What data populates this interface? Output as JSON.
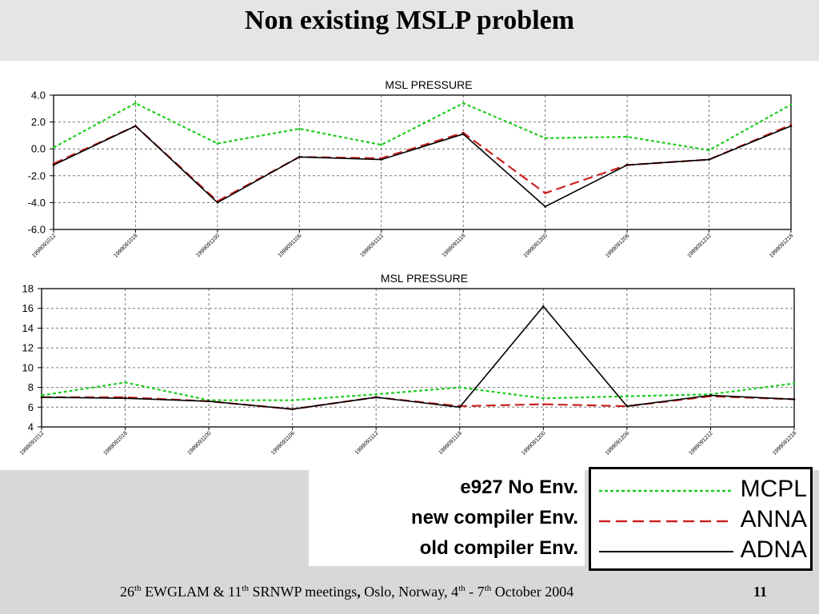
{
  "slide_title": "Non existing MSLP problem",
  "chart_data": [
    {
      "type": "line",
      "title": "MSL PRESSURE",
      "xlabel": "",
      "ylabel": "",
      "categories": [
        "1999091012",
        "1999091018",
        "1999091100",
        "1999091106",
        "1999091112",
        "1999091118",
        "1999091200",
        "1999091206",
        "1999091212",
        "1999091218"
      ],
      "ylim": [
        -6,
        4
      ],
      "yticks": [
        4,
        2,
        0,
        -2,
        -4,
        -6
      ],
      "ytick_labels": [
        "4.0",
        "2.0",
        "0.0",
        "-2.0",
        "-4.0",
        "-6.0"
      ],
      "grid": true,
      "series": [
        {
          "name": "MCPL",
          "color": "#22cc22",
          "dash": "4,3",
          "values": [
            0.1,
            3.4,
            0.4,
            1.5,
            0.3,
            3.4,
            0.8,
            0.9,
            -0.1,
            3.3
          ]
        },
        {
          "name": "ANNA",
          "color": "#cc2222",
          "dash": "12,6",
          "values": [
            -1.1,
            1.7,
            -3.9,
            -0.6,
            -0.7,
            1.2,
            -3.3,
            -1.2,
            -0.8,
            1.8
          ]
        },
        {
          "name": "ADNA",
          "color": "#000000",
          "dash": "",
          "values": [
            -1.2,
            1.7,
            -4.0,
            -0.6,
            -0.8,
            1.1,
            -4.3,
            -1.2,
            -0.8,
            1.7
          ]
        }
      ]
    },
    {
      "type": "line",
      "title": "MSL PRESSURE",
      "xlabel": "",
      "ylabel": "",
      "categories": [
        "1999091012",
        "1999091018",
        "1999091100",
        "1999091106",
        "1999091112",
        "1999091118",
        "1999091200",
        "1999091206",
        "1999091212",
        "1999091218"
      ],
      "ylim": [
        4,
        18
      ],
      "yticks": [
        18,
        16,
        14,
        12,
        10,
        8,
        6,
        4
      ],
      "ytick_labels": [
        "18",
        "16",
        "14",
        "12",
        "10",
        "8",
        "6",
        "4"
      ],
      "grid": true,
      "series": [
        {
          "name": "MCPL",
          "color": "#22cc22",
          "dash": "4,3",
          "values": [
            7.2,
            8.5,
            6.7,
            6.7,
            7.3,
            8.0,
            6.9,
            7.1,
            7.3,
            8.4
          ]
        },
        {
          "name": "ANNA",
          "color": "#cc2222",
          "dash": "12,6",
          "values": [
            7.0,
            7.0,
            6.6,
            5.8,
            7.0,
            6.1,
            6.3,
            6.1,
            7.1,
            6.8
          ]
        },
        {
          "name": "ADNA",
          "color": "#000000",
          "dash": "",
          "values": [
            7.0,
            6.9,
            6.6,
            5.8,
            7.0,
            6.0,
            16.2,
            6.1,
            7.2,
            6.8
          ]
        }
      ]
    }
  ],
  "legend": {
    "labels": [
      "e927 No Env.",
      "new compiler Env.",
      "old compiler Env."
    ],
    "entries": [
      {
        "name": "MCPL",
        "color": "#22cc22",
        "dash": "4,3"
      },
      {
        "name": "ANNA",
        "color": "#cc2222",
        "dash": "14,7"
      },
      {
        "name": "ADNA",
        "color": "#000000",
        "dash": ""
      }
    ]
  },
  "footer": {
    "num1": "26",
    "sup1": "th",
    "t1": " EWGLAM & 11",
    "sup2": "th",
    "t2": " SRNWP meetings",
    "comma": ",",
    "t3": " Oslo, Norway, 4",
    "sup3": "th",
    "t4": " - 7",
    "sup4": "th",
    "t5": " October 2004",
    "page": "11"
  }
}
